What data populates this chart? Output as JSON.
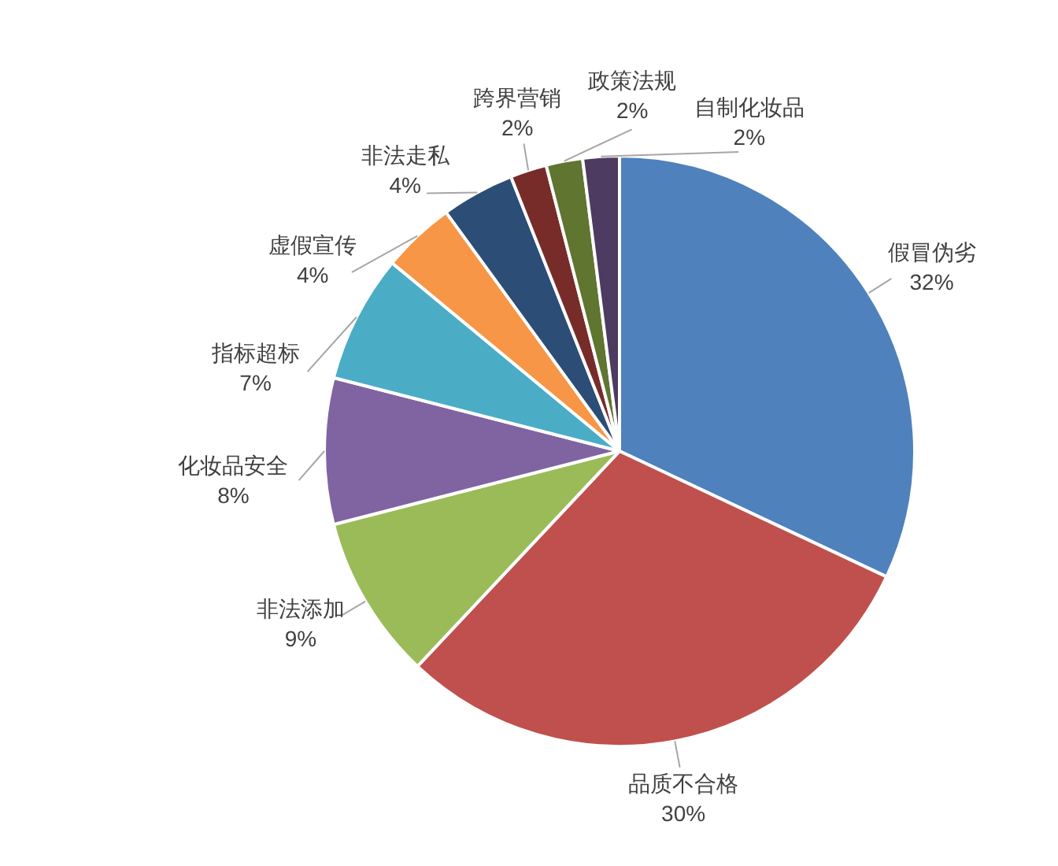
{
  "chart_data": {
    "type": "pie",
    "categories": [
      "假冒伪劣",
      "品质不合格",
      "非法添加",
      "化妆品安全",
      "指标超标",
      "虚假宣传",
      "非法走私",
      "跨界营销",
      "政策法规",
      "自制化妆品"
    ],
    "values": [
      32,
      30,
      9,
      8,
      7,
      4,
      4,
      2,
      2,
      2
    ],
    "value_labels": [
      "32%",
      "30%",
      "9%",
      "8%",
      "7%",
      "4%",
      "4%",
      "2%",
      "2%",
      "2%"
    ],
    "colors": [
      "#4f81bd",
      "#c0504d",
      "#9bbb59",
      "#8064a2",
      "#4bacc6",
      "#f79646",
      "#2c4d75",
      "#772c2a",
      "#5f7530",
      "#4d3b62"
    ]
  }
}
